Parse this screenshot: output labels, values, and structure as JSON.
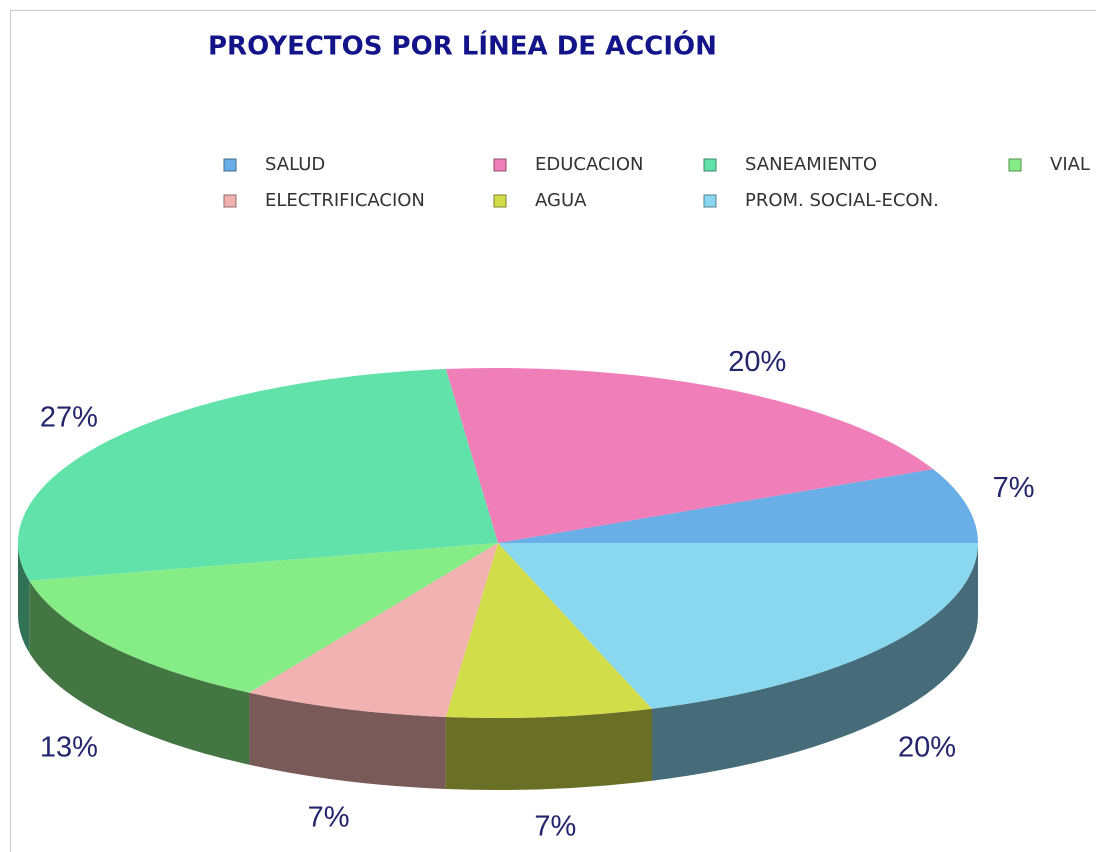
{
  "chart_data": {
    "type": "pie3d",
    "title": "PROYECTOS POR LÍNEA DE ACCIÓN",
    "categories": [
      "SALUD",
      "EDUCACION",
      "SANEAMIENTO",
      "VIAL",
      "ELECTRIFICACION",
      "AGUA",
      "PROM. SOCIAL-ECON."
    ],
    "values": [
      7,
      20,
      27,
      13,
      7,
      7,
      20
    ],
    "value_labels": [
      "7%",
      "20%",
      "27%",
      "13%",
      "7%",
      "7%",
      "20%"
    ],
    "colors": [
      "#6aaee8",
      "#f07fb9",
      "#62e2ab",
      "#86ec86",
      "#f3b2b2",
      "#d2dd4a",
      "#8ad8ef"
    ],
    "legend": "top"
  }
}
